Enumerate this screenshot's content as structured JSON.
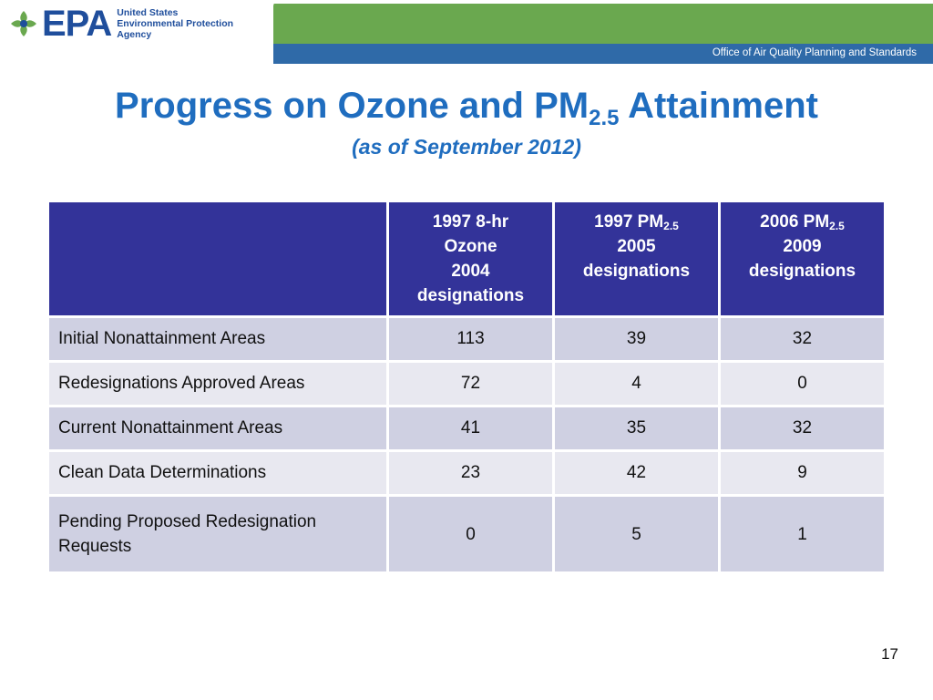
{
  "header": {
    "logo_text": "EPA",
    "agency_lines": [
      "United States",
      "Environmental Protection",
      "Agency"
    ],
    "office": "Office of Air Quality Planning and Standards"
  },
  "title": {
    "main_before": "Progress on Ozone and PM",
    "main_sub": "2.5",
    "main_after": " Attainment",
    "subtitle": "(as of September 2012)"
  },
  "table": {
    "headers": [
      {
        "lines": [
          "1997 8-hr",
          "Ozone",
          "2004",
          "designations"
        ]
      },
      {
        "line1": "1997 PM",
        "sub": "2.5",
        "line2": "2005",
        "line3": "designations"
      },
      {
        "line1": "2006 PM",
        "sub": "2.5",
        "line2": "2009",
        "line3": "designations"
      }
    ],
    "rows": [
      {
        "label": "Initial Nonattainment Areas",
        "values": [
          "113",
          "39",
          "32"
        ]
      },
      {
        "label": "Redesignations Approved Areas",
        "values": [
          "72",
          "4",
          "0"
        ]
      },
      {
        "label": "Current Nonattainment Areas",
        "values": [
          "41",
          "35",
          "32"
        ]
      },
      {
        "label": "Clean Data Determinations",
        "values": [
          "23",
          "42",
          "9"
        ]
      },
      {
        "label_lines": [
          "Pending Proposed Redesignation",
          "Requests"
        ],
        "values": [
          "0",
          "5",
          "1"
        ]
      }
    ]
  },
  "page_number": "17",
  "colors": {
    "header_green": "#6aa84f",
    "header_blue": "#2f6aa8",
    "title_blue": "#1f6dbf",
    "table_header": "#333399",
    "row_odd": "#cfd0e2",
    "row_even": "#e8e8f0"
  },
  "icons": {
    "logo": "epa-flower-logo-icon"
  }
}
